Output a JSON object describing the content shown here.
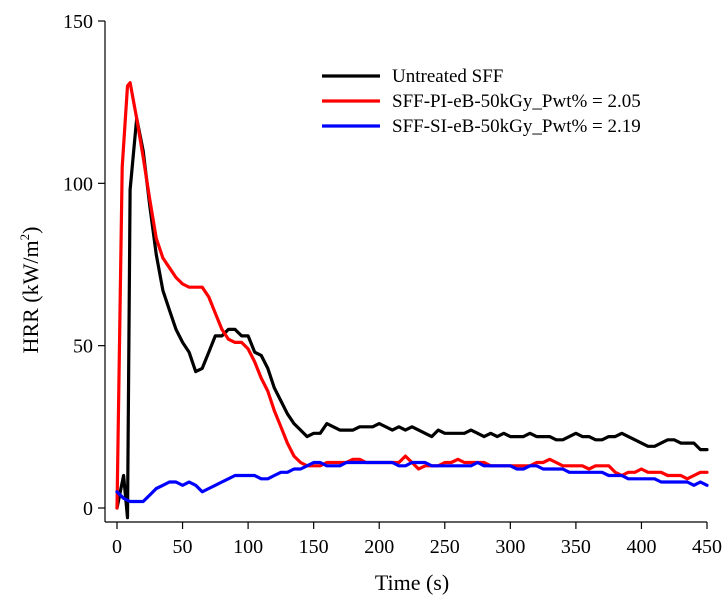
{
  "chart_data": {
    "type": "line",
    "xlabel": "Time (s)",
    "ylabel_main": "HRR (kW/m",
    "ylabel_sup": "2",
    "ylabel_tail": ")",
    "xlim": [
      0,
      450
    ],
    "ylim": [
      0,
      150
    ],
    "xticks": [
      0,
      50,
      100,
      150,
      200,
      250,
      300,
      350,
      400,
      450
    ],
    "yticks": [
      0,
      50,
      100,
      150
    ],
    "grid": false,
    "legend_position": "top-right",
    "series": [
      {
        "name": "Untreated SFF",
        "color": "#000000",
        "x": [
          0,
          5,
          8,
          10,
          15,
          20,
          25,
          30,
          35,
          40,
          45,
          50,
          55,
          60,
          65,
          70,
          75,
          80,
          85,
          90,
          95,
          100,
          105,
          110,
          115,
          120,
          125,
          130,
          135,
          140,
          145,
          150,
          155,
          160,
          165,
          170,
          175,
          180,
          185,
          190,
          195,
          200,
          205,
          210,
          215,
          220,
          225,
          230,
          235,
          240,
          245,
          250,
          255,
          260,
          265,
          270,
          275,
          280,
          285,
          290,
          295,
          300,
          305,
          310,
          315,
          320,
          325,
          330,
          335,
          340,
          345,
          350,
          355,
          360,
          365,
          370,
          375,
          380,
          385,
          390,
          395,
          400,
          405,
          410,
          415,
          420,
          425,
          430,
          435,
          440,
          445,
          450
        ],
        "values": [
          0,
          10,
          -3,
          98,
          120,
          110,
          93,
          78,
          67,
          61,
          55,
          51,
          48,
          42,
          43,
          48,
          53,
          53,
          55,
          55,
          53,
          53,
          48,
          47,
          43,
          37,
          33,
          29,
          26,
          24,
          22,
          23,
          23,
          26,
          25,
          24,
          24,
          24,
          25,
          25,
          25,
          26,
          25,
          24,
          25,
          24,
          25,
          24,
          23,
          22,
          24,
          23,
          23,
          23,
          23,
          24,
          23,
          22,
          23,
          22,
          23,
          22,
          22,
          22,
          23,
          22,
          22,
          22,
          21,
          21,
          22,
          23,
          22,
          22,
          21,
          21,
          22,
          22,
          23,
          22,
          21,
          20,
          19,
          19,
          20,
          21,
          21,
          20,
          20,
          20,
          18,
          18
        ]
      },
      {
        "name": "SFF-PI-eB-50kGy_Pwt% = 2.05",
        "color": "#ff0000",
        "x": [
          0,
          4,
          8,
          10,
          15,
          20,
          25,
          30,
          35,
          40,
          45,
          50,
          55,
          60,
          65,
          70,
          75,
          80,
          85,
          90,
          95,
          100,
          105,
          110,
          115,
          120,
          125,
          130,
          135,
          140,
          145,
          150,
          155,
          160,
          165,
          170,
          175,
          180,
          185,
          190,
          195,
          200,
          205,
          210,
          215,
          220,
          225,
          230,
          235,
          240,
          245,
          250,
          255,
          260,
          265,
          270,
          275,
          280,
          285,
          290,
          295,
          300,
          305,
          310,
          315,
          320,
          325,
          330,
          335,
          340,
          345,
          350,
          355,
          360,
          365,
          370,
          375,
          380,
          385,
          390,
          395,
          400,
          405,
          410,
          415,
          420,
          425,
          430,
          435,
          440,
          445,
          450
        ],
        "values": [
          0,
          105,
          130,
          131,
          120,
          108,
          95,
          83,
          77,
          74,
          71,
          69,
          68,
          68,
          68,
          65,
          60,
          55,
          52,
          51,
          51,
          49,
          45,
          40,
          36,
          30,
          25,
          20,
          16,
          14,
          13,
          13,
          13,
          14,
          14,
          14,
          14,
          15,
          15,
          14,
          14,
          14,
          14,
          14,
          14,
          16,
          14,
          12,
          13,
          13,
          13,
          14,
          14,
          15,
          14,
          14,
          14,
          14,
          13,
          13,
          13,
          13,
          13,
          13,
          13,
          14,
          14,
          15,
          14,
          13,
          13,
          13,
          13,
          12,
          13,
          13,
          13,
          11,
          10,
          11,
          11,
          12,
          11,
          11,
          11,
          10,
          10,
          10,
          9,
          10,
          11,
          11
        ]
      },
      {
        "name": "SFF-SI-eB-50kGy_Pwt% = 2.19",
        "color": "#0000ff",
        "x": [
          0,
          5,
          10,
          15,
          20,
          25,
          30,
          35,
          40,
          45,
          50,
          55,
          60,
          65,
          70,
          75,
          80,
          85,
          90,
          95,
          100,
          105,
          110,
          115,
          120,
          125,
          130,
          135,
          140,
          145,
          150,
          155,
          160,
          165,
          170,
          175,
          180,
          185,
          190,
          195,
          200,
          205,
          210,
          215,
          220,
          225,
          230,
          235,
          240,
          245,
          250,
          255,
          260,
          265,
          270,
          275,
          280,
          285,
          290,
          295,
          300,
          305,
          310,
          315,
          320,
          325,
          330,
          335,
          340,
          345,
          350,
          355,
          360,
          365,
          370,
          375,
          380,
          385,
          390,
          395,
          400,
          405,
          410,
          415,
          420,
          425,
          430,
          435,
          440,
          445,
          450
        ],
        "values": [
          5,
          3,
          2,
          2,
          2,
          4,
          6,
          7,
          8,
          8,
          7,
          8,
          7,
          5,
          6,
          7,
          8,
          9,
          10,
          10,
          10,
          10,
          9,
          9,
          10,
          11,
          11,
          12,
          12,
          13,
          14,
          14,
          13,
          13,
          13,
          14,
          14,
          14,
          14,
          14,
          14,
          14,
          14,
          13,
          13,
          14,
          14,
          14,
          13,
          13,
          13,
          13,
          13,
          13,
          13,
          14,
          13,
          13,
          13,
          13,
          13,
          12,
          12,
          13,
          13,
          12,
          12,
          12,
          12,
          11,
          11,
          11,
          11,
          11,
          11,
          10,
          10,
          10,
          9,
          9,
          9,
          9,
          9,
          8,
          8,
          8,
          8,
          8,
          7,
          8,
          7
        ]
      }
    ]
  }
}
